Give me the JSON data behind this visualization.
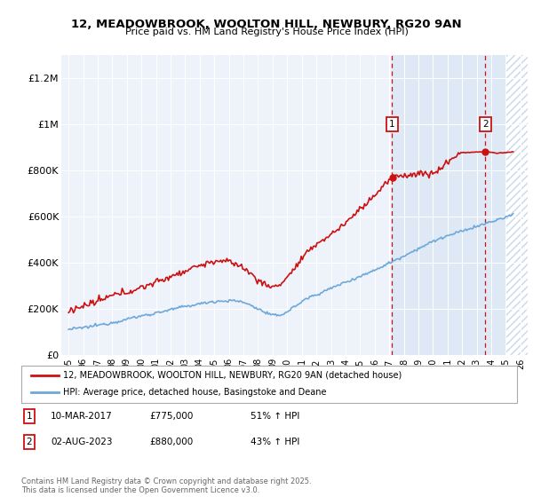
{
  "title_line1": "12, MEADOWBROOK, WOOLTON HILL, NEWBURY, RG20 9AN",
  "title_line2": "Price paid vs. HM Land Registry's House Price Index (HPI)",
  "ytick_labels": [
    "£0",
    "£200K",
    "£400K",
    "£600K",
    "£800K",
    "£1M",
    "£1.2M"
  ],
  "yticks": [
    0,
    200000,
    400000,
    600000,
    800000,
    1000000,
    1200000
  ],
  "ylim_min": 0,
  "ylim_max": 1300000,
  "xlim_min": 1994.5,
  "xlim_max": 2026.5,
  "hpi_color": "#6ea8d8",
  "price_color": "#cc1111",
  "vline1_x": 2017.2,
  "vline2_x": 2023.6,
  "annotation1_label": "1",
  "annotation1_date": "10-MAR-2017",
  "annotation1_price": "£775,000",
  "annotation1_hpi": "51% ↑ HPI",
  "annotation2_label": "2",
  "annotation2_date": "02-AUG-2023",
  "annotation2_price": "£880,000",
  "annotation2_hpi": "43% ↑ HPI",
  "legend_label1": "12, MEADOWBROOK, WOOLTON HILL, NEWBURY, RG20 9AN (detached house)",
  "legend_label2": "HPI: Average price, detached house, Basingstoke and Deane",
  "footer": "Contains HM Land Registry data © Crown copyright and database right 2025.\nThis data is licensed under the Open Government Licence v3.0.",
  "bg_color": "#eef2fb",
  "shaded_color": "#dce8f5",
  "hatch_color": "#c8d8e8"
}
